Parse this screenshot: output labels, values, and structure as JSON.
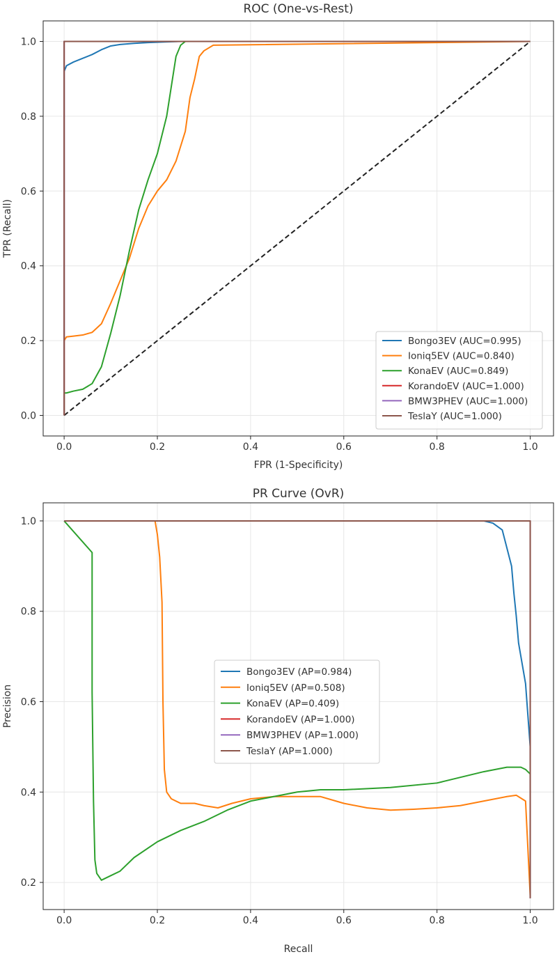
{
  "chart_data": [
    {
      "type": "line",
      "title": "ROC (One-vs-Rest)",
      "xlabel": "FPR (1-Specificity)",
      "ylabel": "TPR (Recall)",
      "xlim": [
        -0.045,
        1.05
      ],
      "ylim": [
        -0.055,
        1.055
      ],
      "xticks": [
        0.0,
        0.2,
        0.4,
        0.6,
        0.8,
        1.0
      ],
      "yticks": [
        0.0,
        0.2,
        0.4,
        0.6,
        0.8,
        1.0
      ],
      "xtick_labels": [
        "0.0",
        "0.2",
        "0.4",
        "0.6",
        "0.8",
        "1.0"
      ],
      "ytick_labels": [
        "0.0",
        "0.2",
        "0.4",
        "0.6",
        "0.8",
        "1.0"
      ],
      "grid": true,
      "legend_position": "lower-right",
      "diagonal": {
        "x": [
          0,
          1
        ],
        "y": [
          0,
          1
        ],
        "style": "dashed",
        "color": "#222222"
      },
      "series": [
        {
          "name": "Bongo3EV",
          "legend": "Bongo3EV (AUC=0.995)",
          "auc": 0.995,
          "color": "#1f77b4",
          "x": [
            0,
            0,
            0.005,
            0.02,
            0.04,
            0.06,
            0.08,
            0.1,
            0.12,
            0.15,
            0.18,
            0.22,
            0.25,
            1.0
          ],
          "y": [
            0,
            0.92,
            0.935,
            0.945,
            0.955,
            0.965,
            0.978,
            0.988,
            0.992,
            0.995,
            0.997,
            0.999,
            1.0,
            1.0
          ]
        },
        {
          "name": "Ioniq5EV",
          "legend": "Ioniq5EV (AUC=0.840)",
          "auc": 0.84,
          "color": "#ff7f0e",
          "x": [
            0,
            0,
            0.005,
            0.02,
            0.04,
            0.06,
            0.08,
            0.1,
            0.12,
            0.14,
            0.16,
            0.18,
            0.2,
            0.22,
            0.24,
            0.26,
            0.27,
            0.28,
            0.29,
            0.3,
            0.32,
            1.0
          ],
          "y": [
            0,
            0.2,
            0.21,
            0.212,
            0.215,
            0.222,
            0.245,
            0.3,
            0.36,
            0.42,
            0.5,
            0.56,
            0.6,
            0.63,
            0.68,
            0.76,
            0.85,
            0.9,
            0.96,
            0.975,
            0.99,
            1.0
          ]
        },
        {
          "name": "KonaEV",
          "legend": "KonaEV (AUC=0.849)",
          "auc": 0.849,
          "color": "#2ca02c",
          "x": [
            0,
            0,
            0.005,
            0.02,
            0.04,
            0.06,
            0.08,
            0.1,
            0.12,
            0.14,
            0.16,
            0.18,
            0.2,
            0.22,
            0.23,
            0.24,
            0.25,
            0.26,
            1.0
          ],
          "y": [
            0,
            0.06,
            0.06,
            0.065,
            0.07,
            0.085,
            0.13,
            0.22,
            0.32,
            0.44,
            0.55,
            0.63,
            0.7,
            0.8,
            0.88,
            0.96,
            0.99,
            1.0,
            1.0
          ]
        },
        {
          "name": "KorandoEV",
          "legend": "KorandoEV (AUC=1.000)",
          "auc": 1.0,
          "color": "#d62728",
          "x": [
            0,
            0,
            1
          ],
          "y": [
            0,
            1,
            1
          ]
        },
        {
          "name": "BMW3PHEV",
          "legend": "BMW3PHEV (AUC=1.000)",
          "auc": 1.0,
          "color": "#9467bd",
          "x": [
            0,
            0,
            1
          ],
          "y": [
            0,
            1,
            1
          ]
        },
        {
          "name": "TeslaY",
          "legend": "TeslaY (AUC=1.000)",
          "auc": 1.0,
          "color": "#8c564b",
          "x": [
            0,
            0,
            1
          ],
          "y": [
            0,
            1,
            1
          ]
        }
      ]
    },
    {
      "type": "line",
      "title": "PR Curve (OvR)",
      "xlabel": "Recall",
      "ylabel": "Precision",
      "xlim": [
        -0.045,
        1.05
      ],
      "ylim": [
        0.14,
        1.04
      ],
      "xticks": [
        0.0,
        0.2,
        0.4,
        0.6,
        0.8,
        1.0
      ],
      "yticks": [
        0.2,
        0.4,
        0.6,
        0.8,
        1.0
      ],
      "xtick_labels": [
        "0.0",
        "0.2",
        "0.4",
        "0.6",
        "0.8",
        "1.0"
      ],
      "ytick_labels": [
        "0.2",
        "0.4",
        "0.6",
        "0.8",
        "1.0"
      ],
      "grid": true,
      "legend_position": "center",
      "series": [
        {
          "name": "Bongo3EV",
          "legend": "Bongo3EV (AP=0.984)",
          "ap": 0.984,
          "color": "#1f77b4",
          "x": [
            0,
            0.9,
            0.92,
            0.94,
            0.95,
            0.96,
            0.965,
            0.97,
            0.975,
            0.98,
            0.985,
            0.99,
            0.995,
            1.0
          ],
          "y": [
            1.0,
            1.0,
            0.995,
            0.98,
            0.94,
            0.9,
            0.84,
            0.79,
            0.73,
            0.7,
            0.67,
            0.64,
            0.57,
            0.5
          ]
        },
        {
          "name": "Ioniq5EV",
          "legend": "Ioniq5EV (AP=0.508)",
          "ap": 0.508,
          "color": "#ff7f0e",
          "x": [
            0,
            0.195,
            0.2,
            0.205,
            0.21,
            0.212,
            0.215,
            0.22,
            0.23,
            0.25,
            0.28,
            0.3,
            0.33,
            0.36,
            0.4,
            0.45,
            0.5,
            0.55,
            0.6,
            0.65,
            0.7,
            0.75,
            0.8,
            0.85,
            0.9,
            0.95,
            0.97,
            0.99,
            1.0
          ],
          "y": [
            1.0,
            1.0,
            0.97,
            0.92,
            0.82,
            0.6,
            0.45,
            0.4,
            0.385,
            0.375,
            0.375,
            0.37,
            0.365,
            0.375,
            0.385,
            0.39,
            0.39,
            0.39,
            0.375,
            0.365,
            0.36,
            0.362,
            0.365,
            0.37,
            0.38,
            0.39,
            0.393,
            0.38,
            0.17
          ]
        },
        {
          "name": "KonaEV",
          "legend": "KonaEV (AP=0.409)",
          "ap": 0.409,
          "color": "#2ca02c",
          "x": [
            0,
            0.06,
            0.06,
            0.063,
            0.066,
            0.07,
            0.08,
            0.09,
            0.1,
            0.12,
            0.15,
            0.2,
            0.25,
            0.3,
            0.35,
            0.4,
            0.45,
            0.5,
            0.55,
            0.6,
            0.7,
            0.8,
            0.9,
            0.95,
            0.98,
            0.99,
            1.0
          ],
          "y": [
            1.0,
            0.93,
            0.62,
            0.38,
            0.25,
            0.22,
            0.205,
            0.21,
            0.215,
            0.225,
            0.255,
            0.29,
            0.315,
            0.335,
            0.36,
            0.38,
            0.39,
            0.4,
            0.405,
            0.405,
            0.41,
            0.42,
            0.445,
            0.455,
            0.455,
            0.45,
            0.44
          ]
        },
        {
          "name": "KorandoEV",
          "legend": "KorandoEV (AP=1.000)",
          "ap": 1.0,
          "color": "#d62728",
          "x": [
            0,
            1.0,
            1.0
          ],
          "y": [
            1.0,
            1.0,
            0.165
          ]
        },
        {
          "name": "BMW3PHEV",
          "legend": "BMW3PHEV (AP=1.000)",
          "ap": 1.0,
          "color": "#9467bd",
          "x": [
            0,
            1.0,
            1.0
          ],
          "y": [
            1.0,
            1.0,
            0.165
          ]
        },
        {
          "name": "TeslaY",
          "legend": "TeslaY (AP=1.000)",
          "ap": 1.0,
          "color": "#8c564b",
          "x": [
            0,
            1.0,
            1.0
          ],
          "y": [
            1.0,
            1.0,
            0.165
          ]
        }
      ]
    }
  ]
}
